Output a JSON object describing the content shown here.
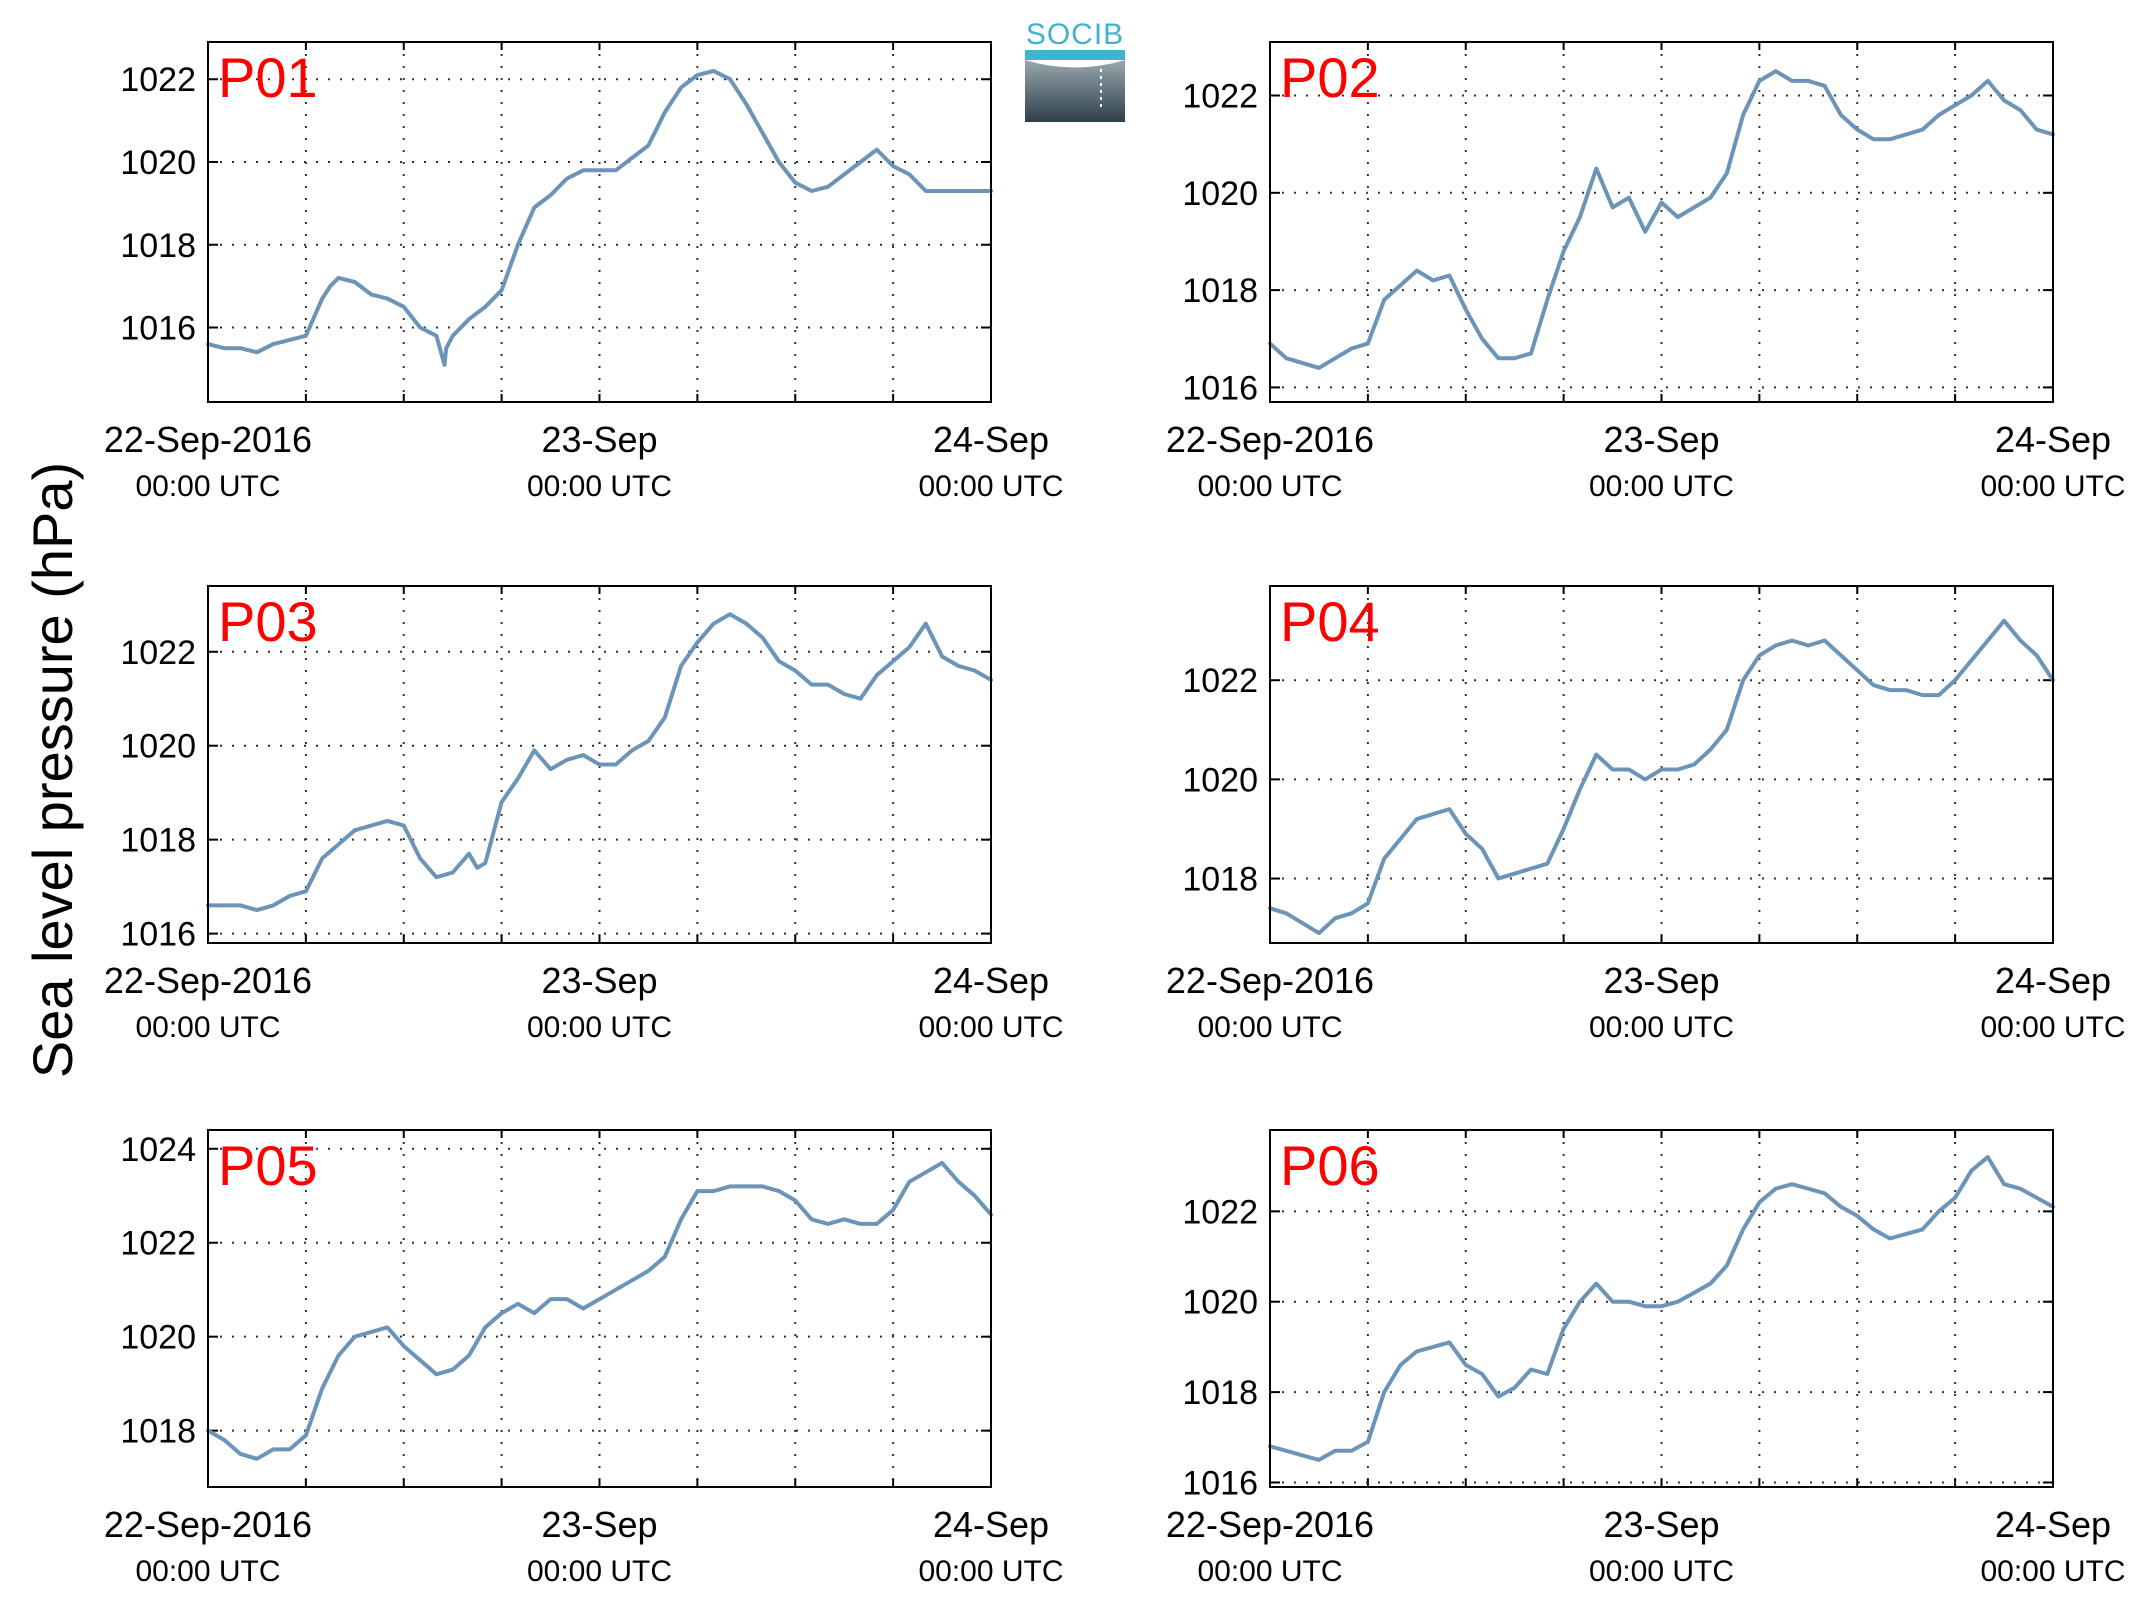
{
  "figure": {
    "ylabel": "Sea level pressure (hPa)",
    "logo_text": "SOCIB",
    "line_color": "#6b94b8",
    "panel_label_color": "#ff0000",
    "grid_color": "#333333"
  },
  "chart_data": [
    {
      "type": "line",
      "panel_label": "P01",
      "x_ticks": [
        {
          "label": "22-Sep-2016",
          "sub": "00:00 UTC"
        },
        {
          "label": "23-Sep",
          "sub": "00:00 UTC"
        },
        {
          "label": "24-Sep",
          "sub": "00:00 UTC"
        }
      ],
      "x_range_hours": [
        0,
        48
      ],
      "ylim": [
        1014.2,
        1022.9
      ],
      "yticks": [
        1016,
        1018,
        1020,
        1022
      ],
      "grid": true,
      "x": [
        0,
        1,
        2,
        3,
        4,
        5,
        6,
        7,
        7.5,
        8,
        9,
        10,
        11,
        12,
        13,
        14,
        14.5,
        14.6,
        15,
        16,
        17,
        18,
        19,
        20,
        21,
        22,
        23,
        24,
        25,
        26,
        27,
        28,
        29,
        30,
        31,
        32,
        33,
        34,
        35,
        36,
        37,
        38,
        39,
        40,
        41,
        42,
        43,
        44,
        45,
        46,
        47,
        48
      ],
      "values": [
        1015.6,
        1015.5,
        1015.5,
        1015.4,
        1015.6,
        1015.7,
        1015.8,
        1016.7,
        1017.0,
        1017.2,
        1017.1,
        1016.8,
        1016.7,
        1016.5,
        1016.0,
        1015.8,
        1015.1,
        1015.5,
        1015.8,
        1016.2,
        1016.5,
        1016.9,
        1018.0,
        1018.9,
        1019.2,
        1019.6,
        1019.8,
        1019.8,
        1019.8,
        1020.1,
        1020.4,
        1021.2,
        1021.8,
        1022.1,
        1022.2,
        1022.0,
        1021.4,
        1020.7,
        1020.0,
        1019.5,
        1019.3,
        1019.4,
        1019.7,
        1020.0,
        1020.3,
        1019.9,
        1019.7,
        1019.3,
        1019.3,
        1019.3,
        1019.3,
        1019.3
      ]
    },
    {
      "type": "line",
      "panel_label": "P02",
      "x_ticks": [
        {
          "label": "22-Sep-2016",
          "sub": "00:00 UTC"
        },
        {
          "label": "23-Sep",
          "sub": "00:00 UTC"
        },
        {
          "label": "24-Sep",
          "sub": "00:00 UTC"
        }
      ],
      "x_range_hours": [
        0,
        48
      ],
      "ylim": [
        1015.7,
        1023.1
      ],
      "yticks": [
        1016,
        1018,
        1020,
        1022
      ],
      "grid": true,
      "x": [
        0,
        1,
        2,
        3,
        4,
        5,
        6,
        7,
        8,
        9,
        10,
        11,
        12,
        13,
        14,
        15,
        16,
        17,
        18,
        19,
        20,
        21,
        22,
        23,
        24,
        25,
        26,
        27,
        28,
        29,
        30,
        31,
        32,
        33,
        34,
        35,
        36,
        37,
        38,
        39,
        40,
        41,
        42,
        43,
        44,
        45,
        46,
        47,
        48
      ],
      "values": [
        1016.9,
        1016.6,
        1016.5,
        1016.4,
        1016.6,
        1016.8,
        1016.9,
        1017.8,
        1018.1,
        1018.4,
        1018.2,
        1018.3,
        1017.6,
        1017.0,
        1016.6,
        1016.6,
        1016.7,
        1017.8,
        1018.8,
        1019.5,
        1020.5,
        1019.7,
        1019.9,
        1019.2,
        1019.8,
        1019.5,
        1019.7,
        1019.9,
        1020.4,
        1021.6,
        1022.3,
        1022.5,
        1022.3,
        1022.3,
        1022.2,
        1021.6,
        1021.3,
        1021.1,
        1021.1,
        1021.2,
        1021.3,
        1021.6,
        1021.8,
        1022.0,
        1022.3,
        1021.9,
        1021.7,
        1021.3,
        1021.2
      ]
    },
    {
      "type": "line",
      "panel_label": "P03",
      "x_ticks": [
        {
          "label": "22-Sep-2016",
          "sub": "00:00 UTC"
        },
        {
          "label": "23-Sep",
          "sub": "00:00 UTC"
        },
        {
          "label": "24-Sep",
          "sub": "00:00 UTC"
        }
      ],
      "x_range_hours": [
        0,
        48
      ],
      "ylim": [
        1015.8,
        1023.4
      ],
      "yticks": [
        1016,
        1018,
        1020,
        1022
      ],
      "grid": true,
      "x": [
        0,
        1,
        2,
        3,
        4,
        5,
        6,
        7,
        8,
        9,
        10,
        11,
        12,
        13,
        14,
        15,
        16,
        16.5,
        17,
        18,
        19,
        20,
        21,
        22,
        23,
        24,
        25,
        26,
        27,
        28,
        29,
        30,
        31,
        32,
        33,
        34,
        35,
        36,
        37,
        38,
        39,
        40,
        41,
        42,
        43,
        44,
        45,
        46,
        47,
        48
      ],
      "values": [
        1016.6,
        1016.6,
        1016.6,
        1016.5,
        1016.6,
        1016.8,
        1016.9,
        1017.6,
        1017.9,
        1018.2,
        1018.3,
        1018.4,
        1018.3,
        1017.6,
        1017.2,
        1017.3,
        1017.7,
        1017.4,
        1017.5,
        1018.8,
        1019.3,
        1019.9,
        1019.5,
        1019.7,
        1019.8,
        1019.6,
        1019.6,
        1019.9,
        1020.1,
        1020.6,
        1021.7,
        1022.2,
        1022.6,
        1022.8,
        1022.6,
        1022.3,
        1021.8,
        1021.6,
        1021.3,
        1021.3,
        1021.1,
        1021.0,
        1021.5,
        1021.8,
        1022.1,
        1022.6,
        1021.9,
        1021.7,
        1021.6,
        1021.4
      ]
    },
    {
      "type": "line",
      "panel_label": "P04",
      "x_ticks": [
        {
          "label": "22-Sep-2016",
          "sub": "00:00 UTC"
        },
        {
          "label": "23-Sep",
          "sub": "00:00 UTC"
        },
        {
          "label": "24-Sep",
          "sub": "00:00 UTC"
        }
      ],
      "x_range_hours": [
        0,
        48
      ],
      "ylim": [
        1016.7,
        1023.9
      ],
      "yticks": [
        1018,
        1020,
        1022
      ],
      "grid": true,
      "x": [
        0,
        1,
        2,
        3,
        4,
        5,
        6,
        7,
        8,
        9,
        10,
        11,
        12,
        13,
        14,
        15,
        16,
        17,
        18,
        19,
        20,
        21,
        22,
        23,
        24,
        25,
        26,
        27,
        28,
        29,
        30,
        31,
        32,
        33,
        34,
        35,
        36,
        37,
        38,
        39,
        40,
        41,
        42,
        43,
        44,
        45,
        46,
        47,
        48
      ],
      "values": [
        1017.4,
        1017.3,
        1017.1,
        1016.9,
        1017.2,
        1017.3,
        1017.5,
        1018.4,
        1018.8,
        1019.2,
        1019.3,
        1019.4,
        1018.9,
        1018.6,
        1018.0,
        1018.1,
        1018.2,
        1018.3,
        1019.0,
        1019.8,
        1020.5,
        1020.2,
        1020.2,
        1020.0,
        1020.2,
        1020.2,
        1020.3,
        1020.6,
        1021.0,
        1022.0,
        1022.5,
        1022.7,
        1022.8,
        1022.7,
        1022.8,
        1022.5,
        1022.2,
        1021.9,
        1021.8,
        1021.8,
        1021.7,
        1021.7,
        1022.0,
        1022.4,
        1022.8,
        1023.2,
        1022.8,
        1022.5,
        1022.0
      ]
    },
    {
      "type": "line",
      "panel_label": "P05",
      "x_ticks": [
        {
          "label": "22-Sep-2016",
          "sub": "00:00 UTC"
        },
        {
          "label": "23-Sep",
          "sub": "00:00 UTC"
        },
        {
          "label": "24-Sep",
          "sub": "00:00 UTC"
        }
      ],
      "x_range_hours": [
        0,
        48
      ],
      "ylim": [
        1016.8,
        1024.4
      ],
      "yticks": [
        1018,
        1020,
        1022,
        1024
      ],
      "grid": true,
      "x": [
        0,
        1,
        2,
        3,
        4,
        5,
        6,
        7,
        8,
        9,
        10,
        11,
        12,
        13,
        14,
        15,
        16,
        17,
        18,
        19,
        20,
        21,
        22,
        23,
        24,
        25,
        26,
        27,
        28,
        29,
        30,
        31,
        32,
        33,
        34,
        35,
        36,
        37,
        38,
        39,
        40,
        41,
        42,
        43,
        44,
        45,
        46,
        47,
        48
      ],
      "values": [
        1018.0,
        1017.8,
        1017.5,
        1017.4,
        1017.6,
        1017.6,
        1017.9,
        1018.9,
        1019.6,
        1020.0,
        1020.1,
        1020.2,
        1019.8,
        1019.5,
        1019.2,
        1019.3,
        1019.6,
        1020.2,
        1020.5,
        1020.7,
        1020.5,
        1020.8,
        1020.8,
        1020.6,
        1020.8,
        1021.0,
        1021.2,
        1021.4,
        1021.7,
        1022.5,
        1023.1,
        1023.1,
        1023.2,
        1023.2,
        1023.2,
        1023.1,
        1022.9,
        1022.5,
        1022.4,
        1022.5,
        1022.4,
        1022.4,
        1022.7,
        1023.3,
        1023.5,
        1023.7,
        1023.3,
        1023.0,
        1022.6
      ]
    },
    {
      "type": "line",
      "panel_label": "P06",
      "x_ticks": [
        {
          "label": "22-Sep-2016",
          "sub": "00:00 UTC"
        },
        {
          "label": "23-Sep",
          "sub": "00:00 UTC"
        },
        {
          "label": "24-Sep",
          "sub": "00:00 UTC"
        }
      ],
      "x_range_hours": [
        0,
        48
      ],
      "ylim": [
        1015.9,
        1023.8
      ],
      "yticks": [
        1016,
        1018,
        1020,
        1022
      ],
      "grid": true,
      "x": [
        0,
        1,
        2,
        3,
        4,
        5,
        6,
        7,
        8,
        9,
        10,
        11,
        12,
        13,
        14,
        15,
        16,
        17,
        18,
        19,
        20,
        21,
        22,
        23,
        24,
        25,
        26,
        27,
        28,
        29,
        30,
        31,
        32,
        33,
        34,
        35,
        36,
        37,
        38,
        39,
        40,
        41,
        42,
        43,
        44,
        45,
        46,
        47,
        48
      ],
      "values": [
        1016.8,
        1016.7,
        1016.6,
        1016.5,
        1016.7,
        1016.7,
        1016.9,
        1018.0,
        1018.6,
        1018.9,
        1019.0,
        1019.1,
        1018.6,
        1018.4,
        1017.9,
        1018.1,
        1018.5,
        1018.4,
        1019.4,
        1020.0,
        1020.4,
        1020.0,
        1020.0,
        1019.9,
        1019.9,
        1020.0,
        1020.2,
        1020.4,
        1020.8,
        1021.6,
        1022.2,
        1022.5,
        1022.6,
        1022.5,
        1022.4,
        1022.1,
        1021.9,
        1021.6,
        1021.4,
        1021.5,
        1021.6,
        1022.0,
        1022.3,
        1022.9,
        1023.2,
        1022.6,
        1022.5,
        1022.3,
        1022.1
      ]
    }
  ]
}
